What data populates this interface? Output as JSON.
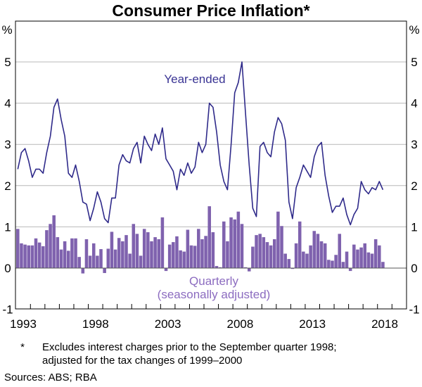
{
  "chart_data": {
    "type": "bar+line",
    "title": "Consumer Price Inflation*",
    "ylabel_left": "%",
    "ylabel_right": "%",
    "ylim": [
      -1,
      5.9
    ],
    "yticks": [
      -1,
      0,
      1,
      2,
      3,
      4,
      5
    ],
    "xticks": [
      "1993",
      "1998",
      "2003",
      "2008",
      "2013",
      "2018"
    ],
    "x_start": "1993 Q1",
    "frequency": "quarterly",
    "grid": true,
    "colors": {
      "line": "#2f2a8a",
      "bars": "#7f62ae",
      "line_label": "#3a3494",
      "bar_label": "#8c6cc0",
      "grid": "#b8b8b8"
    },
    "series": [
      {
        "name": "Year-ended",
        "type": "line",
        "values": [
          2.4,
          2.8,
          2.9,
          2.6,
          2.2,
          2.4,
          2.4,
          2.3,
          2.8,
          3.2,
          3.9,
          4.1,
          3.6,
          3.2,
          2.3,
          2.2,
          2.5,
          2.1,
          1.6,
          1.55,
          1.15,
          1.45,
          1.85,
          1.6,
          1.2,
          1.1,
          1.7,
          1.7,
          2.5,
          2.75,
          2.6,
          2.55,
          2.9,
          3.05,
          2.55,
          3.2,
          3.0,
          2.85,
          3.25,
          3.0,
          3.4,
          2.65,
          2.5,
          2.35,
          1.9,
          2.4,
          2.25,
          2.55,
          2.3,
          2.45,
          3.05,
          2.8,
          3.0,
          4.0,
          3.9,
          3.3,
          2.5,
          2.1,
          1.9,
          3.0,
          4.25,
          4.5,
          5.0,
          3.75,
          2.5,
          1.45,
          1.25,
          2.95,
          3.05,
          2.8,
          2.7,
          3.3,
          3.65,
          3.5,
          3.1,
          1.6,
          1.2,
          1.95,
          2.2,
          2.5,
          2.35,
          2.2,
          2.7,
          2.95,
          3.05,
          2.25,
          1.75,
          1.35,
          1.5,
          1.5,
          1.7,
          1.3,
          1.05,
          1.3,
          1.45,
          2.1,
          1.9,
          1.8,
          1.95,
          1.9,
          2.1,
          1.9
        ]
      },
      {
        "name": "Quarterly",
        "subname": "(seasonally adjusted)",
        "type": "bar",
        "values": [
          0.95,
          0.6,
          0.57,
          0.55,
          0.55,
          0.72,
          0.62,
          0.53,
          0.92,
          1.07,
          1.28,
          0.75,
          0.45,
          0.65,
          0.42,
          0.72,
          0.72,
          0.27,
          -0.13,
          0.7,
          0.3,
          0.6,
          0.3,
          0.46,
          -0.12,
          0.47,
          0.88,
          0.45,
          0.73,
          0.65,
          0.8,
          0.35,
          1.07,
          0.83,
          0.3,
          0.95,
          0.87,
          0.65,
          0.75,
          0.7,
          1.23,
          -0.07,
          0.57,
          0.63,
          0.77,
          0.43,
          0.4,
          0.93,
          0.55,
          0.54,
          0.95,
          0.7,
          0.78,
          1.5,
          0.87,
          0.05,
          0.02,
          1.13,
          0.65,
          1.23,
          1.18,
          1.37,
          1.07,
          0.02,
          -0.08,
          0.52,
          0.8,
          0.83,
          0.75,
          0.63,
          0.55,
          0.7,
          1.37,
          1.02,
          0.35,
          0.22,
          -0.02,
          0.6,
          1.13,
          0.4,
          0.35,
          0.55,
          0.9,
          0.83,
          0.65,
          0.6,
          0.2,
          0.18,
          0.32,
          0.83,
          0.15,
          0.4,
          -0.07,
          0.57,
          0.45,
          0.5,
          0.6,
          0.38,
          0.35,
          0.7,
          0.55,
          0.15
        ]
      }
    ],
    "footnote_marker": "*",
    "footnote_line1": "Excludes interest charges prior to the September quarter 1998;",
    "footnote_line2": "adjusted for the tax changes of 1999–2000",
    "sources": "Sources: ABS; RBA"
  }
}
